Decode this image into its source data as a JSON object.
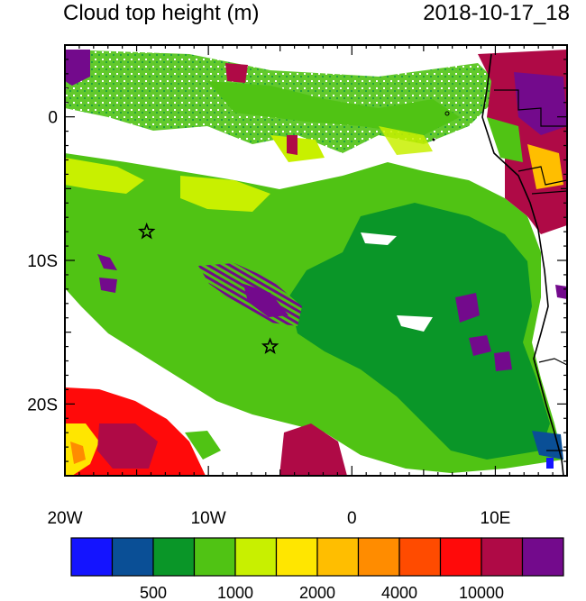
{
  "title_left": "Cloud top height (m)",
  "title_right": "2018-10-17_18",
  "axes": {
    "y_ticks": [
      {
        "label": "0",
        "lat": 0
      },
      {
        "label": "10S",
        "lat": -10
      },
      {
        "label": "20S",
        "lat": -20
      }
    ],
    "x_ticks": [
      {
        "label": "20W",
        "lon": -20
      },
      {
        "label": "10W",
        "lon": -10
      },
      {
        "label": "0",
        "lon": 0
      },
      {
        "label": "10E",
        "lon": 10
      }
    ],
    "lon_range": [
      -20,
      15
    ],
    "lat_range": [
      -25,
      5
    ]
  },
  "colorbar": {
    "colors": [
      "#1414ff",
      "#0a4f96",
      "#0a9628",
      "#50c314",
      "#c8f000",
      "#ffe600",
      "#ffbe00",
      "#ff8c00",
      "#ff4b00",
      "#ff0a0a",
      "#af0a46",
      "#730a8c"
    ],
    "labels": [
      {
        "text": "500",
        "boundary": 2
      },
      {
        "text": "1000",
        "boundary": 4
      },
      {
        "text": "2000",
        "boundary": 6
      },
      {
        "text": "4000",
        "boundary": 8
      },
      {
        "text": "10000",
        "boundary": 10
      }
    ]
  },
  "markers": [
    {
      "name": "star-marker-north",
      "lon": -14.3,
      "lat": -8
    },
    {
      "name": "star-marker-south",
      "lon": -5.7,
      "lat": -16
    }
  ]
}
